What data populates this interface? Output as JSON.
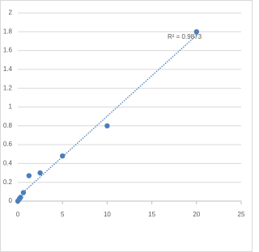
{
  "chart_data": {
    "type": "scatter",
    "x": [
      0,
      0.156,
      0.312,
      0.625,
      1.25,
      2.5,
      5,
      10,
      20
    ],
    "y": [
      0,
      0.02,
      0.04,
      0.09,
      0.27,
      0.3,
      0.48,
      0.8,
      1.8
    ],
    "color": "#4a7ebb",
    "trendline": "linear",
    "trendline_color": "#4a7ebb",
    "annotation": "R² = 0.9873",
    "xlim": [
      0,
      25
    ],
    "xticks": [
      0,
      5,
      10,
      15,
      20,
      25
    ],
    "ylim": [
      0,
      2
    ],
    "yticks": [
      0,
      0.2,
      0.4,
      0.6,
      0.8,
      1,
      1.2,
      1.4,
      1.6,
      1.8,
      2
    ],
    "grid": true
  }
}
